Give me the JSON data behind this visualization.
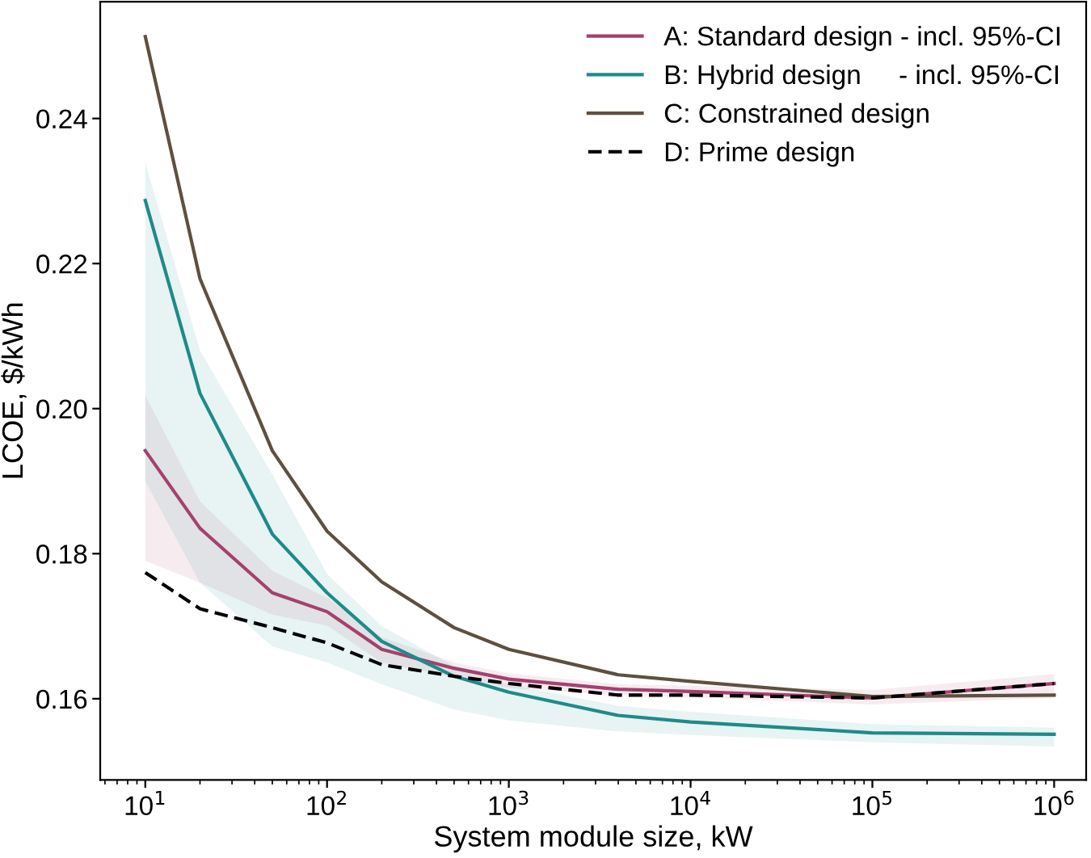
{
  "chart_data": {
    "type": "line",
    "xlabel": "System module size, kW",
    "ylabel": "LCOE, $/kWh",
    "log": "x",
    "x": [
      10,
      20,
      50,
      100,
      200,
      500,
      1000,
      4000,
      10000,
      100000,
      1000000
    ],
    "series": [
      {
        "name": "A: Standard design - incl. 95%-CI",
        "color": "#a6406e",
        "line_style": "solid",
        "values": [
          0.1942,
          0.1835,
          0.1746,
          0.172,
          0.1668,
          0.1642,
          0.1627,
          0.1613,
          0.161,
          0.1601,
          0.1621
        ],
        "lower": [
          0.179,
          0.176,
          0.1716,
          0.1701,
          0.165,
          0.163,
          0.1615,
          0.1605,
          0.1602,
          0.1592,
          0.1601
        ],
        "upper": [
          0.2018,
          0.1872,
          0.1776,
          0.1739,
          0.1685,
          0.165,
          0.1635,
          0.162,
          0.1618,
          0.1612,
          0.1634
        ]
      },
      {
        "name": "B: Hybrid design     - incl. 95%-CI",
        "color": "#1f8a8a",
        "line_style": "solid",
        "values": [
          0.2287,
          0.2021,
          0.1827,
          0.1746,
          0.1679,
          0.1631,
          0.1609,
          0.1577,
          0.1568,
          0.1553,
          0.1551
        ],
        "lower": [
          0.19,
          0.176,
          0.1672,
          0.165,
          0.162,
          0.1585,
          0.157,
          0.1555,
          0.155,
          0.154,
          0.1534
        ],
        "upper": [
          0.2339,
          0.208,
          0.1909,
          0.1772,
          0.17,
          0.1645,
          0.162,
          0.159,
          0.1582,
          0.1565,
          0.156
        ]
      },
      {
        "name": "C: Constrained design",
        "color": "#5e5040",
        "line_style": "solid",
        "values": [
          0.2513,
          0.2179,
          0.1942,
          0.1831,
          0.1761,
          0.1698,
          0.1668,
          0.1633,
          0.1624,
          0.1603,
          0.1605
        ]
      },
      {
        "name": "D: Prime design",
        "color": "#000000",
        "line_style": "dashed",
        "values": [
          0.1774,
          0.1724,
          0.1698,
          0.1677,
          0.1647,
          0.1631,
          0.1621,
          0.1605,
          0.1605,
          0.1601,
          0.1621
        ]
      }
    ],
    "xlim": [
      5.65,
      1500000
    ],
    "ylim": [
      0.1488,
      0.2561
    ],
    "xticks": [
      {
        "value": 10,
        "label": "10$^{1}$"
      },
      {
        "value": 100,
        "label": "10$^{2}$"
      },
      {
        "value": 1000,
        "label": "10$^{3}$"
      },
      {
        "value": 10000,
        "label": "10$^{4}$"
      },
      {
        "value": 100000,
        "label": "10$^{5}$"
      },
      {
        "value": 1000000,
        "label": "10$^{6}$"
      }
    ],
    "yticks": [
      0.16,
      0.18,
      {
        "value": 0.2,
        "label": "0.20"
      },
      0.22,
      0.24
    ],
    "grid": false,
    "legend": "top right",
    "marker": "none"
  }
}
